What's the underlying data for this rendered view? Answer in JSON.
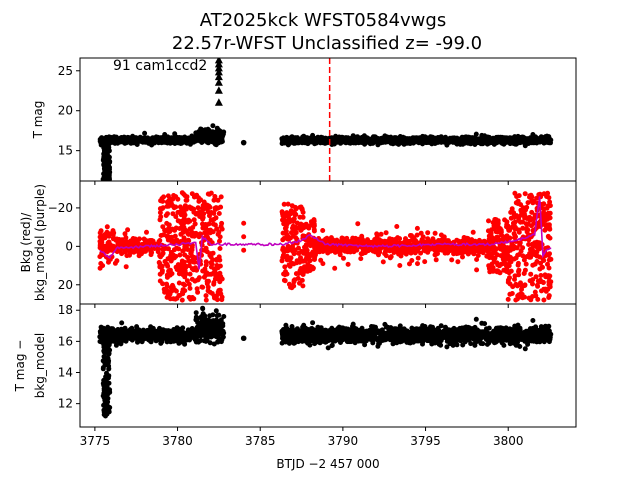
{
  "title_line1": "AT2025kck  WFST0584vwgs",
  "title_line2": "22.57r-WFST Unclassified z= -99.0",
  "annotation": "91 cam1ccd2",
  "colors": {
    "bkg": "#ff0000",
    "model": "#bf00bf",
    "flux": "#000000",
    "marker": "#ff0000"
  },
  "chart_data": [
    {
      "type": "scatter",
      "name": "tmag-panel",
      "ylabel": "T mag",
      "xlim": [
        3774.1,
        3804.1
      ],
      "ylim": [
        26.6,
        11.2
      ],
      "yticks": [
        15,
        20,
        25
      ],
      "event_marker_x": 3789.2,
      "segments": [
        {
          "x0": 3775.3,
          "x1": 3781.1,
          "level": 16.3,
          "scatter": 0.4
        },
        {
          "x0": 3781.1,
          "x1": 3782.8,
          "level": 16.8,
          "scatter": 0.9
        },
        {
          "x0": 3786.3,
          "x1": 3802.6,
          "level": 16.3,
          "scatter": 0.4
        }
      ],
      "spike": {
        "x0": 3775.5,
        "x1": 3775.9,
        "top": 11.3
      },
      "isolated_points": [
        {
          "x": 3784.0,
          "y": 16.0
        }
      ],
      "upper_limits_x": 3782.5,
      "upper_limits_y": [
        21.0,
        22.5,
        23.5,
        24.2,
        24.8,
        25.3,
        25.8,
        26.3
      ]
    },
    {
      "type": "scatter",
      "name": "bkg-panel",
      "ylabel": "Bkg (red)/ bkg_model (purple)",
      "ylim": [
        -34,
        30
      ],
      "yticks": [
        -20,
        0,
        20
      ],
      "bkg_segments": [
        {
          "x0": 3775.3,
          "x1": 3776.3,
          "amp": 10
        },
        {
          "x0": 3776.3,
          "x1": 3778.9,
          "amp": 4
        },
        {
          "x0": 3778.9,
          "x1": 3782.7,
          "amp": 28
        },
        {
          "x0": 3786.3,
          "x1": 3787.6,
          "amp": 22
        },
        {
          "x0": 3787.6,
          "x1": 3788.3,
          "amp": 14
        },
        {
          "x0": 3788.3,
          "x1": 3798.8,
          "amp": 5
        },
        {
          "x0": 3798.8,
          "x1": 3800.0,
          "amp": 14
        },
        {
          "x0": 3800.0,
          "x1": 3802.6,
          "amp": 28
        }
      ],
      "bkg_isolated": [
        {
          "x": 3784.0,
          "y": -5
        },
        {
          "x": 3784.0,
          "y": -12
        },
        {
          "x": 3784.0,
          "y": 2
        }
      ],
      "model_line": {
        "x": [
          3775.3,
          3775.6,
          3775.9,
          3776.3,
          3778,
          3780,
          3781.1,
          3781.3,
          3781.5,
          3782.0,
          3782.8,
          3786.3,
          3787.5,
          3788.0,
          3789,
          3792,
          3796,
          3799,
          3800.5,
          3801.6,
          3801.9,
          3802.1,
          3802.3,
          3802.6
        ],
        "y": [
          2,
          4,
          6,
          1,
          0,
          -1,
          -2,
          12,
          -5,
          -1,
          -1,
          -1,
          -3,
          -6,
          -1,
          0,
          -1,
          -1,
          -3,
          -6,
          -26,
          5,
          2,
          1
        ]
      }
    },
    {
      "type": "scatter",
      "name": "diff-panel",
      "ylabel": "T mag − bkg_model",
      "ylim": [
        18.4,
        10.5
      ],
      "yticks": [
        12,
        14,
        16,
        18
      ],
      "xticks": [
        3775,
        3780,
        3785,
        3790,
        3795,
        3800
      ],
      "xlabel": "BTJD −2 457 000",
      "segments": [
        {
          "x0": 3775.3,
          "x1": 3781.1,
          "level": 16.4,
          "scatter": 0.4
        },
        {
          "x0": 3781.1,
          "x1": 3782.8,
          "level": 16.8,
          "scatter": 1.0
        },
        {
          "x0": 3786.3,
          "x1": 3802.6,
          "level": 16.4,
          "scatter": 0.5
        }
      ],
      "spike": {
        "x0": 3775.5,
        "x1": 3775.9,
        "top": 11.2
      },
      "isolated_points": [
        {
          "x": 3784.0,
          "y": 16.2
        }
      ]
    }
  ]
}
